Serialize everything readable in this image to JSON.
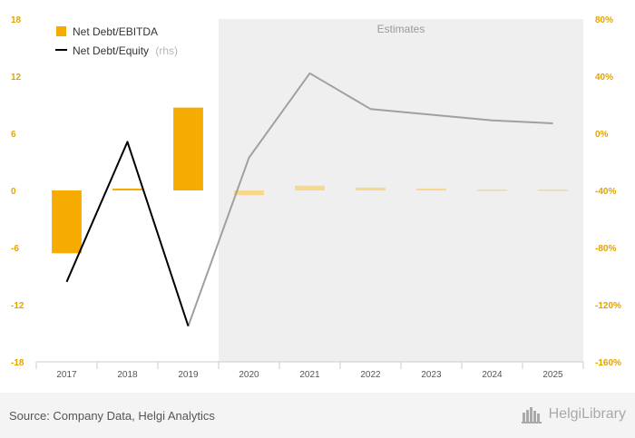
{
  "chart_data": {
    "type": "bar+line",
    "categories": [
      "2017",
      "2018",
      "2019",
      "2020",
      "2021",
      "2022",
      "2023",
      "2024",
      "2025"
    ],
    "estimates_from_index": 3,
    "estimates_label": "Estimates",
    "series": [
      {
        "name": "Net Debt/EBITDA",
        "type": "bar",
        "axis": "left",
        "values": [
          -6.6,
          0.2,
          8.7,
          -0.5,
          0.5,
          0.3,
          0.2,
          0.1,
          0.1
        ],
        "color": "#f5ab00",
        "estimate_color": "#f7d88d"
      },
      {
        "name": "Net Debt/Equity",
        "name_suffix": "(rhs)",
        "type": "line",
        "axis": "right",
        "values": [
          -104,
          -6,
          -135,
          -17,
          42,
          17,
          13,
          9,
          7
        ],
        "color": "#000000",
        "estimate_color": "#a0a0a0"
      }
    ],
    "left_axis": {
      "min": -18,
      "max": 18,
      "ticks": [
        18,
        12,
        6,
        0,
        -6,
        -12,
        -18
      ],
      "tick_labels": [
        "18",
        "12",
        "6",
        "0",
        "-6",
        "-12",
        "-18"
      ]
    },
    "right_axis": {
      "min": -160,
      "max": 80,
      "ticks": [
        80,
        40,
        0,
        -40,
        -80,
        -120,
        -160
      ],
      "tick_labels": [
        "80%",
        "40%",
        "0%",
        "-40%",
        "-80%",
        "-120%",
        "-160%"
      ]
    }
  },
  "footer": {
    "source": "Source: Company Data, Helgi Analytics",
    "brand": "HelgiLibrary"
  },
  "colors": {
    "tick": "#e3a400",
    "estimates_bg": "#efefef",
    "footer_bg": "#f4f4f4"
  }
}
